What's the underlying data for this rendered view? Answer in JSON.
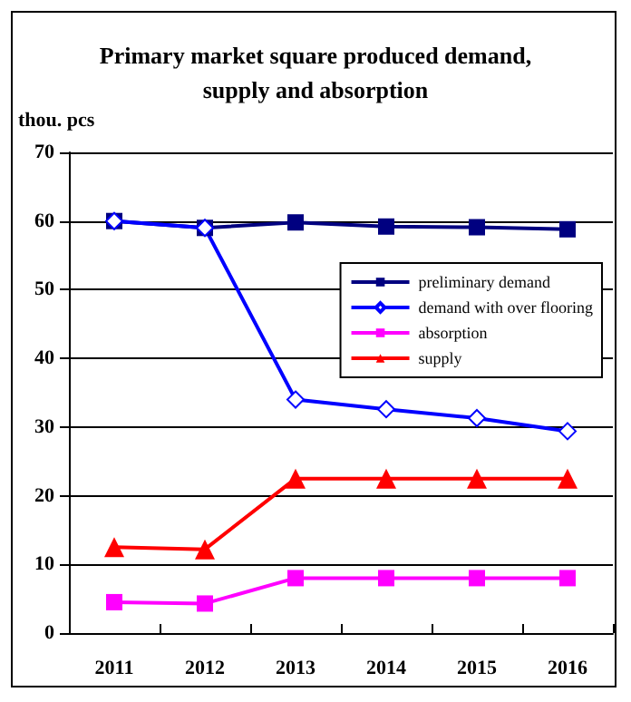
{
  "chart_data": {
    "type": "line",
    "title": "Primary market square produced demand,\nsupply and absorption",
    "ylabel": "thou. pcs",
    "categories": [
      "2011",
      "2012",
      "2013",
      "2014",
      "2015",
      "2016"
    ],
    "series": [
      {
        "name": "preliminary demand",
        "color": "#000080",
        "marker": "square",
        "values": [
          60,
          59,
          59.8,
          59.2,
          59.1,
          58.8
        ]
      },
      {
        "name": "demand with over flooring",
        "color": "#0000ff",
        "marker": "diamond",
        "values": [
          60,
          59,
          34,
          32.6,
          31.3,
          29.4
        ]
      },
      {
        "name": "absorption",
        "color": "#ff00ff",
        "marker": "square",
        "values": [
          4.5,
          4.3,
          8,
          8,
          8,
          8
        ]
      },
      {
        "name": "supply",
        "color": "#ff0000",
        "marker": "triangle",
        "values": [
          12.5,
          12.2,
          22.5,
          22.5,
          22.5,
          22.5
        ]
      }
    ],
    "ylim": [
      0,
      70
    ],
    "yticks": [
      0,
      10,
      20,
      30,
      40,
      50,
      60,
      70
    ],
    "grid": "y",
    "legend": "right"
  }
}
